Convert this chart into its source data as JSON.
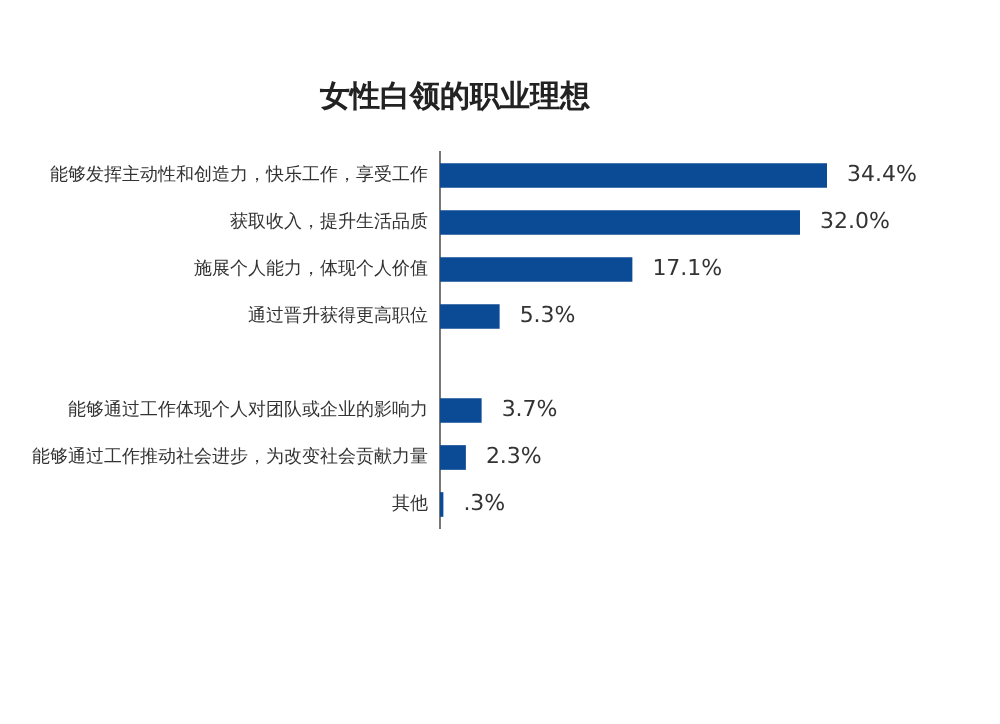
{
  "chart_data": {
    "type": "bar",
    "orientation": "horizontal",
    "title": "女性白领的职业理想",
    "categories": [
      "能够发挥主动性和创造力，快乐工作，享受工作",
      "获取收入，提升生活品质",
      "施展个人能力，体现个人价值",
      "通过晋升获得更高职位",
      null,
      "能够通过工作体现个人对团队或企业的影响力",
      "能够通过工作推动社会进步，为改变社会贡献力量",
      "其他"
    ],
    "values": [
      34.4,
      32.0,
      17.1,
      5.3,
      null,
      3.7,
      2.3,
      0.3
    ],
    "value_labels": [
      "34.4%",
      "32.0%",
      "17.1%",
      "5.3%",
      null,
      "3.7%",
      "2.3%",
      ".3%"
    ],
    "color": "#0b4a94",
    "grid": false,
    "legend": false
  }
}
